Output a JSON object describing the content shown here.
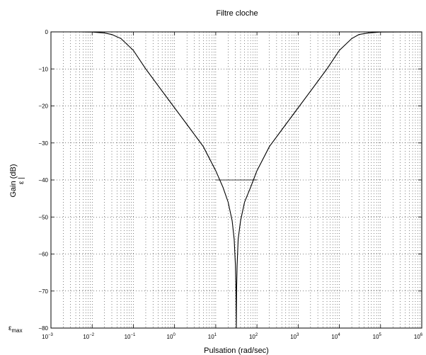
{
  "chart_data": {
    "type": "line",
    "title": "Filtre cloche",
    "xlabel": "Pulsation (rad/sec)",
    "ylabel": "Gain (dB)",
    "x_scale": "log",
    "xlim": [
      0.001,
      1000000
    ],
    "ylim": [
      -80,
      0
    ],
    "grid": true,
    "x_tick_labels": [
      {
        "base": "10",
        "exp": "-3"
      },
      {
        "base": "10",
        "exp": "-2"
      },
      {
        "base": "10",
        "exp": "-1"
      },
      {
        "base": "10",
        "exp": "0"
      },
      {
        "base": "10",
        "exp": "1"
      },
      {
        "base": "10",
        "exp": "2"
      },
      {
        "base": "10",
        "exp": "3"
      },
      {
        "base": "10",
        "exp": "4"
      },
      {
        "base": "10",
        "exp": "5"
      },
      {
        "base": "10",
        "exp": "6"
      }
    ],
    "y_ticks": [
      0,
      -10,
      -20,
      -30,
      -40,
      -50,
      -60,
      -70,
      -80
    ],
    "series": [
      {
        "x": [
          0.001,
          0.005,
          0.01,
          0.02,
          0.03,
          0.05,
          0.1,
          0.2,
          0.5,
          1,
          2,
          5,
          10,
          15,
          20,
          25,
          28,
          30,
          31,
          31.6,
          32,
          33,
          35,
          40,
          50,
          70,
          100,
          200,
          500,
          1000,
          2000,
          5000,
          10000,
          20000,
          30000,
          50000,
          100000,
          1000000
        ],
        "y": [
          0,
          0,
          -0.03,
          -0.3,
          -0.7,
          -1.8,
          -5,
          -10,
          -16,
          -20.5,
          -25,
          -31,
          -37.5,
          -42,
          -46,
          -51,
          -56,
          -63,
          -70,
          -80,
          -70,
          -63,
          -56,
          -51,
          -46,
          -42,
          -37.5,
          -31,
          -25,
          -20.5,
          -16,
          -10,
          -5,
          -1.8,
          -0.7,
          -0.3,
          -0.03,
          0
        ]
      }
    ],
    "annotations": [
      {
        "type": "hline",
        "y": -40,
        "x_start": 10,
        "x_end": 100
      }
    ],
    "annotation_labels": {
      "eps": "ε",
      "eps_max_base": "ε",
      "eps_max_sub": "max"
    }
  }
}
